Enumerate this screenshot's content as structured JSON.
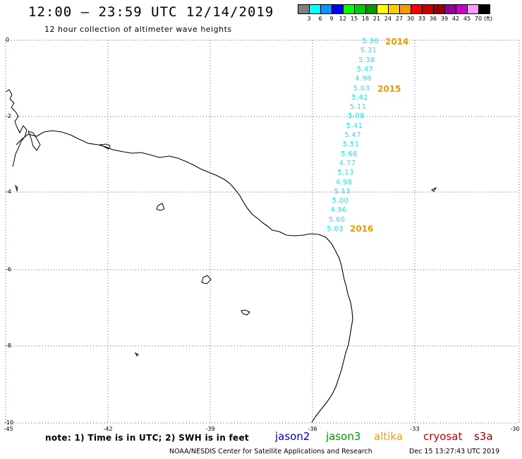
{
  "title": "12:00 – 23:59 UTC 12/14/2019",
  "subtitle": "12 hour collection of altimeter wave heights",
  "color_scale": {
    "unit": "(ft)",
    "labels": [
      "3",
      "6",
      "9",
      "12",
      "15",
      "18",
      "21",
      "24",
      "27",
      "30",
      "33",
      "36",
      "39",
      "42",
      "45",
      "70"
    ],
    "colors": [
      "#808080",
      "#00ffff",
      "#0099ff",
      "#0000ff",
      "#00ff00",
      "#00cc00",
      "#009900",
      "#ffff00",
      "#ffcc00",
      "#ff9900",
      "#ff0000",
      "#cc0000",
      "#990000",
      "#990099",
      "#cc00cc",
      "#ff99ff",
      "#000000"
    ]
  },
  "axes": {
    "y_ticks": [
      "0",
      "-2",
      "-4",
      "-6",
      "-8",
      "-10"
    ],
    "x_ticks": [
      "-45",
      "-42",
      "-39",
      "-36",
      "-33",
      "-30"
    ]
  },
  "wave_heights": [
    "5.36",
    "5.31",
    "5.38",
    "5.47",
    "4.98",
    "5.03",
    "5.42",
    "5.11",
    "5.08",
    "5.41",
    "5.47",
    "5.51",
    "5.66",
    "4.77",
    "5.13",
    "4.98",
    "5.13",
    "5.00",
    "4.96",
    "5.60",
    "5.03"
  ],
  "years": [
    "2014",
    "2015",
    "2016"
  ],
  "note": "note: 1) Time is in UTC; 2) SWH is in feet",
  "satellites": [
    {
      "name": "jason2",
      "color": "#0000cc"
    },
    {
      "name": "jason3",
      "color": "#009900"
    },
    {
      "name": "altika",
      "color": "#ff9900"
    },
    {
      "name": "cryosat",
      "color": "#cc0000"
    },
    {
      "name": "s3a",
      "color": "#990000"
    }
  ],
  "credit": "NOAA/NESDIS Center for Satellite Applications and Research",
  "timestamp": "Dec 15 13:27:43 UTC 2019"
}
